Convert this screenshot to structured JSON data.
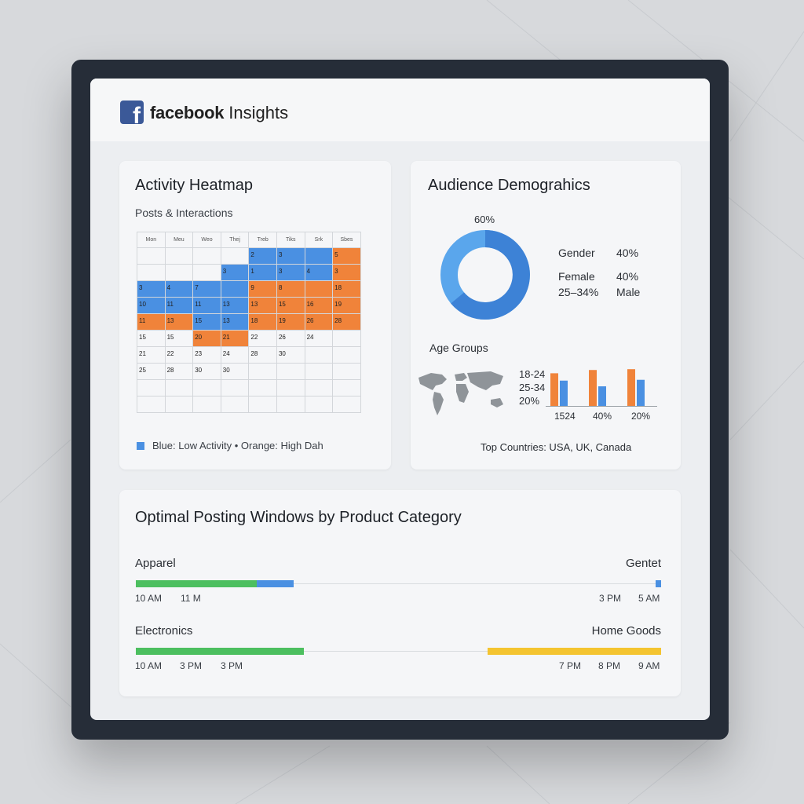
{
  "header": {
    "logo_glyph": "f",
    "brand_bold": "facebook",
    "brand_rest": " Insights",
    "brand_color": "#3b5998"
  },
  "heatmap": {
    "title": "Activity Heatmap",
    "subtitle": "Posts & Interactions",
    "days": [
      "Mon",
      "Meu",
      "Weo",
      "Thej",
      "Treb",
      "Tiks",
      "Srk",
      "Sbes"
    ],
    "rows": [
      [
        {
          "t": "",
          "c": ""
        },
        {
          "t": "",
          "c": ""
        },
        {
          "t": "",
          "c": ""
        },
        {
          "t": "",
          "c": ""
        },
        {
          "t": "2",
          "c": "blue"
        },
        {
          "t": "3",
          "c": "blue"
        },
        {
          "t": "",
          "c": "blue"
        },
        {
          "t": "5",
          "c": "orange"
        }
      ],
      [
        {
          "t": "",
          "c": ""
        },
        {
          "t": "",
          "c": ""
        },
        {
          "t": "",
          "c": ""
        },
        {
          "t": "3",
          "c": "blue"
        },
        {
          "t": "1",
          "c": "blue"
        },
        {
          "t": "3",
          "c": "blue"
        },
        {
          "t": "4",
          "c": "blue"
        },
        {
          "t": "3",
          "c": "orange"
        }
      ],
      [
        {
          "t": "3",
          "c": "blue"
        },
        {
          "t": "4",
          "c": "blue"
        },
        {
          "t": "7",
          "c": "blue"
        },
        {
          "t": "",
          "c": "blue"
        },
        {
          "t": "9",
          "c": "orange"
        },
        {
          "t": "8",
          "c": "orange"
        },
        {
          "t": "",
          "c": "orange"
        },
        {
          "t": "18",
          "c": "orange"
        }
      ],
      [
        {
          "t": "10",
          "c": "blue"
        },
        {
          "t": "11",
          "c": "blue"
        },
        {
          "t": "11",
          "c": "blue"
        },
        {
          "t": "13",
          "c": "blue"
        },
        {
          "t": "13",
          "c": "orange"
        },
        {
          "t": "15",
          "c": "orange"
        },
        {
          "t": "16",
          "c": "orange"
        },
        {
          "t": "19",
          "c": "orange"
        }
      ],
      [
        {
          "t": "11",
          "c": "orange"
        },
        {
          "t": "13",
          "c": "orange"
        },
        {
          "t": "15",
          "c": "blue"
        },
        {
          "t": "13",
          "c": "blue"
        },
        {
          "t": "18",
          "c": "orange"
        },
        {
          "t": "19",
          "c": "orange"
        },
        {
          "t": "26",
          "c": "orange"
        },
        {
          "t": "28",
          "c": "orange"
        }
      ],
      [
        {
          "t": "15",
          "c": ""
        },
        {
          "t": "15",
          "c": ""
        },
        {
          "t": "20",
          "c": "orange"
        },
        {
          "t": "21",
          "c": "orange"
        },
        {
          "t": "22",
          "c": ""
        },
        {
          "t": "26",
          "c": ""
        },
        {
          "t": "24",
          "c": ""
        },
        {
          "t": "",
          "c": ""
        }
      ],
      [
        {
          "t": "21",
          "c": ""
        },
        {
          "t": "22",
          "c": ""
        },
        {
          "t": "23",
          "c": ""
        },
        {
          "t": "24",
          "c": ""
        },
        {
          "t": "28",
          "c": ""
        },
        {
          "t": "30",
          "c": ""
        },
        {
          "t": "",
          "c": ""
        },
        {
          "t": "",
          "c": ""
        }
      ],
      [
        {
          "t": "25",
          "c": ""
        },
        {
          "t": "28",
          "c": ""
        },
        {
          "t": "30",
          "c": ""
        },
        {
          "t": "30",
          "c": ""
        },
        {
          "t": "",
          "c": ""
        },
        {
          "t": "",
          "c": ""
        },
        {
          "t": "",
          "c": ""
        },
        {
          "t": "",
          "c": ""
        }
      ],
      [
        {
          "t": "",
          "c": ""
        },
        {
          "t": "",
          "c": ""
        },
        {
          "t": "",
          "c": ""
        },
        {
          "t": "",
          "c": ""
        },
        {
          "t": "",
          "c": ""
        },
        {
          "t": "",
          "c": ""
        },
        {
          "t": "",
          "c": ""
        },
        {
          "t": "",
          "c": ""
        }
      ],
      [
        {
          "t": "",
          "c": ""
        },
        {
          "t": "",
          "c": ""
        },
        {
          "t": "",
          "c": ""
        },
        {
          "t": "",
          "c": ""
        },
        {
          "t": "",
          "c": ""
        },
        {
          "t": "",
          "c": ""
        },
        {
          "t": "",
          "c": ""
        },
        {
          "t": "",
          "c": ""
        }
      ]
    ],
    "legend": "Blue: Low Activity • Orange: High Dah",
    "colors": {
      "low": "#4a90e2",
      "high": "#f0833a"
    }
  },
  "demographics": {
    "title": "Audience Demograhics",
    "donut_label": "60%",
    "donut_color": "#4a90e2",
    "gender_label": "Gender",
    "gender_value": "40%",
    "female_label": "Female",
    "female_value": "40%",
    "age_range_label": "25–34%",
    "male_label": "Male",
    "age_groups_title": "Age Groups",
    "age_side_labels": [
      "18-24",
      "25-34",
      "20%"
    ],
    "bar_labels": [
      "1524",
      "40%",
      "20%"
    ],
    "top_countries": "Top Countries: USA, UK, Canada",
    "chart_data": {
      "type": "bar",
      "categories": [
        "1524",
        "40%",
        "20%"
      ],
      "series": [
        {
          "values": [
            40,
            44,
            45
          ],
          "color": "#f0833a"
        },
        {
          "values": [
            31,
            24,
            32
          ],
          "color": "#4a90e2"
        }
      ],
      "ylim": [
        0,
        50
      ]
    }
  },
  "posting": {
    "title": "Optimal Posting Windows by Product Category",
    "rows": [
      {
        "left": "Apparel",
        "right": "Gentet",
        "segments": [
          {
            "from": 0,
            "to": 0.23,
            "color": "#4cbf5f"
          },
          {
            "from": 0.23,
            "to": 0.3,
            "color": "#4a90e2"
          },
          {
            "from": 0.99,
            "to": 1.0,
            "color": "#4a90e2"
          }
        ],
        "times_left": [
          "10 AM",
          "11 M"
        ],
        "times_right": [
          "3 PM",
          "5 AM"
        ]
      },
      {
        "left": "Electronics",
        "right": "Home Goods",
        "segments": [
          {
            "from": 0,
            "to": 0.32,
            "color": "#4cbf5f"
          },
          {
            "from": 0.67,
            "to": 1.0,
            "color": "#f4c430"
          }
        ],
        "times_left": [
          "10 AM",
          "3 PM",
          "3 PM"
        ],
        "times_right": [
          "7 PM",
          "8 PM",
          "9 AM"
        ]
      }
    ]
  }
}
